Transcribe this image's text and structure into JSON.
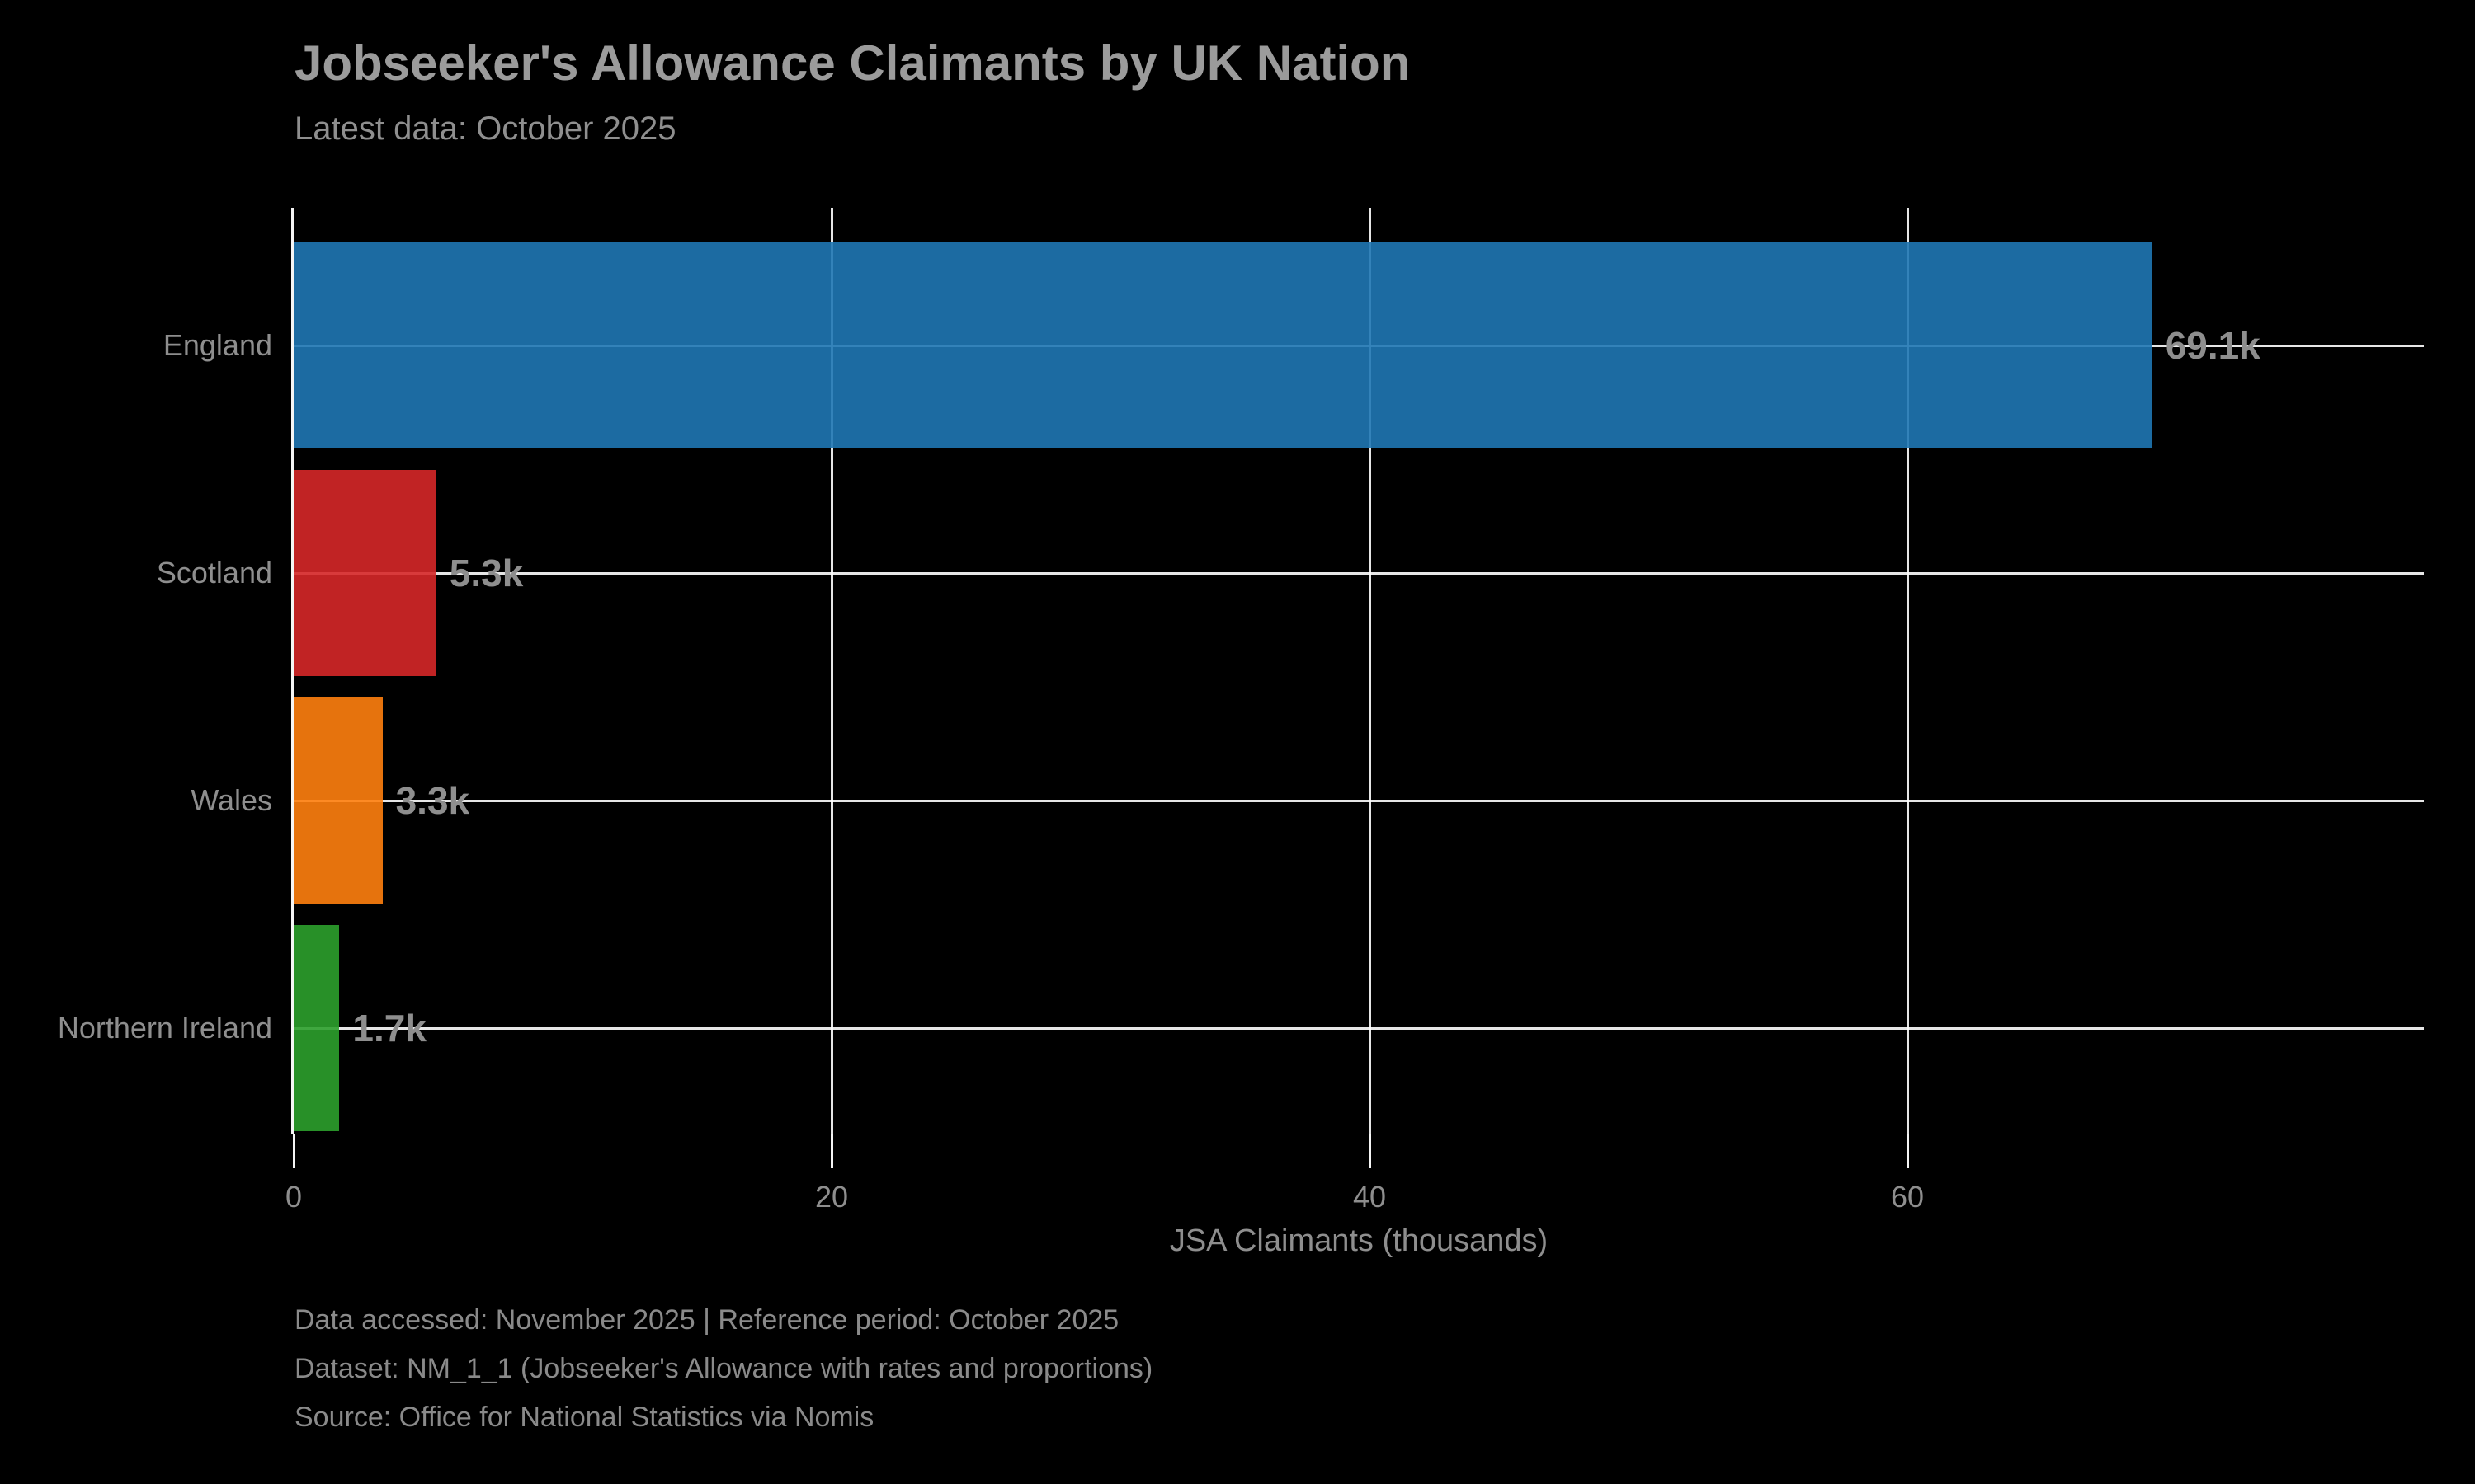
{
  "chart_data": {
    "type": "bar",
    "orientation": "horizontal",
    "title": "Jobseeker's Allowance Claimants by UK Nation",
    "subtitle": "Latest data: October 2025",
    "categories": [
      "England",
      "Scotland",
      "Wales",
      "Northern Ireland"
    ],
    "values": [
      69.1,
      5.3,
      3.3,
      1.7
    ],
    "value_labels": [
      "69.1k",
      "5.3k",
      "3.3k",
      "1.7k"
    ],
    "bar_colors": [
      "#1f77b4",
      "#d62728",
      "#ff7f0e",
      "#2ca02c"
    ],
    "xlabel": "JSA Claimants (thousands)",
    "x_ticks": [
      "0",
      "20",
      "40",
      "60"
    ],
    "x_tick_values": [
      0,
      20,
      40,
      60
    ],
    "xlim": [
      0,
      79.2
    ],
    "grid": true,
    "legend": "none",
    "background_color": "#000000",
    "text_color": "#8e8e8e",
    "gridline_color": "#ffffff"
  },
  "footer": {
    "lines": [
      "Data accessed: November 2025 | Reference period: October 2025",
      "Dataset: NM_1_1 (Jobseeker's Allowance with rates and proportions)",
      "Source: Office for National Statistics via Nomis"
    ]
  }
}
